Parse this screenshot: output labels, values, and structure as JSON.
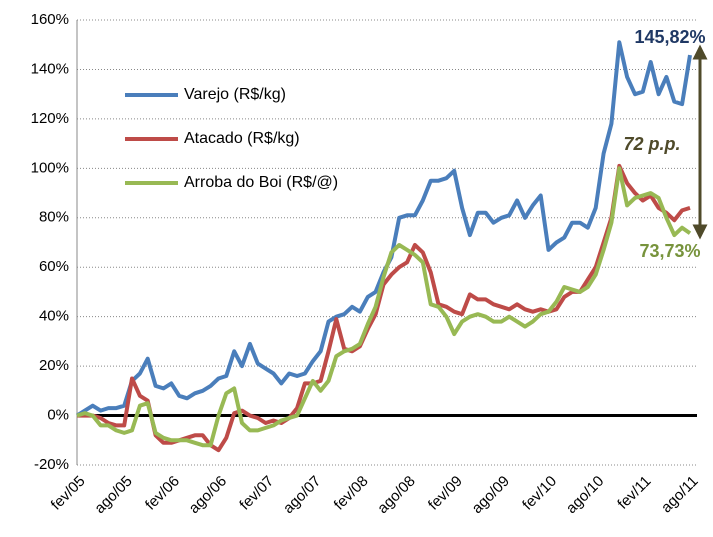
{
  "chart_data": {
    "type": "line",
    "categories": [
      "fev/05",
      null,
      null,
      null,
      null,
      null,
      "ago/05",
      null,
      null,
      null,
      null,
      null,
      "fev/06",
      null,
      null,
      null,
      null,
      null,
      "ago/06",
      null,
      null,
      null,
      null,
      null,
      "fev/07",
      null,
      null,
      null,
      null,
      null,
      "ago/07",
      null,
      null,
      null,
      null,
      null,
      "fev/08",
      null,
      null,
      null,
      null,
      null,
      "ago/08",
      null,
      null,
      null,
      null,
      null,
      "fev/09",
      null,
      null,
      null,
      null,
      null,
      "ago/09",
      null,
      null,
      null,
      null,
      null,
      "fev/10",
      null,
      null,
      null,
      null,
      null,
      "ago/10",
      null,
      null,
      null,
      null,
      null,
      "fev/11",
      null,
      null,
      null,
      null,
      null,
      "ago/11"
    ],
    "series": [
      {
        "name": "Varejo (R$/kg)",
        "color": "#4a7ebb",
        "values": [
          0,
          2,
          4,
          2,
          3,
          3,
          4,
          14,
          17,
          23,
          12,
          11,
          13,
          8,
          7,
          9,
          10,
          12,
          15,
          16,
          26,
          20,
          29,
          21,
          19,
          17,
          13,
          17,
          16,
          17,
          22,
          26,
          38,
          40,
          41,
          44,
          42,
          48,
          50,
          58,
          64,
          80,
          81,
          81,
          87,
          95,
          95,
          96,
          99,
          84,
          73,
          82,
          82,
          78,
          80,
          81,
          87,
          80,
          85,
          89,
          67,
          70,
          72,
          78,
          78,
          76,
          84,
          106,
          118,
          151,
          137,
          130,
          131,
          143,
          130,
          137,
          127,
          126,
          145.82
        ]
      },
      {
        "name": "Atacado (R$/kg)",
        "color": "#be4b48",
        "values": [
          0,
          0,
          0,
          -1,
          -3,
          -4,
          -4,
          15,
          8,
          6,
          -8,
          -11,
          -11,
          -10,
          -9,
          -8,
          -8,
          -12,
          -14,
          -9,
          1,
          2,
          0,
          -1,
          -3,
          -2,
          -3,
          -1,
          3,
          13,
          13,
          14,
          26,
          39,
          27,
          26,
          28,
          35,
          41,
          53,
          57,
          60,
          62,
          69,
          66,
          58,
          45,
          44,
          42,
          41,
          49,
          47,
          47,
          45,
          44,
          43,
          45,
          43,
          42,
          43,
          42,
          43,
          48,
          50,
          50,
          55,
          60,
          70,
          80,
          101,
          94,
          90,
          87,
          89,
          84,
          82,
          79,
          83,
          84
        ]
      },
      {
        "name": "Arroba do Boi (R$/@)",
        "color": "#98b954",
        "values": [
          0,
          1,
          0,
          -4,
          -4,
          -6,
          -7,
          -6,
          4,
          5,
          -7,
          -9,
          -10,
          -10,
          -10,
          -11,
          -12,
          -12,
          0,
          9,
          11,
          -3,
          -6,
          -6,
          -5,
          -4,
          -2,
          -1,
          0,
          7,
          14,
          10,
          14,
          24,
          26,
          27,
          29,
          37,
          44,
          56,
          66,
          69,
          67,
          65,
          62,
          45,
          44,
          40,
          33,
          38,
          40,
          41,
          40,
          38,
          38,
          40,
          38,
          36,
          38,
          41,
          42,
          46,
          52,
          51,
          50,
          52,
          57,
          67,
          78,
          100,
          85,
          88,
          89,
          90,
          88,
          80,
          73,
          76,
          73.73
        ]
      }
    ],
    "ylim": [
      -20,
      160
    ],
    "yticks": [
      {
        "value": -20,
        "label": "-20%"
      },
      {
        "value": 0,
        "label": "0%"
      },
      {
        "value": 20,
        "label": "20%"
      },
      {
        "value": 40,
        "label": "40%"
      },
      {
        "value": 60,
        "label": "60%"
      },
      {
        "value": 80,
        "label": "80%"
      },
      {
        "value": 100,
        "label": "100%"
      },
      {
        "value": 120,
        "label": "120%"
      },
      {
        "value": 140,
        "label": "140%"
      },
      {
        "value": 160,
        "label": "160%"
      }
    ],
    "grid": true,
    "legend": "upper left",
    "annotations": [
      {
        "text": "145,82%",
        "color": "#1f3864"
      },
      {
        "text": "72 p.p.",
        "color": "#4f4a2a"
      },
      {
        "text": "73,73%",
        "color": "#77933c"
      }
    ]
  }
}
